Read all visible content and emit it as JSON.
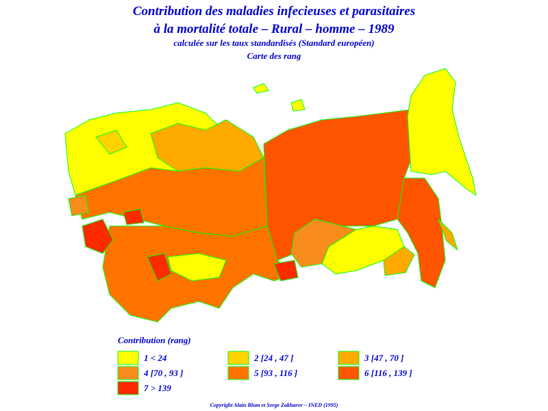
{
  "header": {
    "title_line1": "Contribution des maladies infecieuses et parasitaires",
    "title_line2": "à la mortalité totale – Rural – homme – 1989",
    "subtitle": "calculée sur les taux standardisés (Standard européen)",
    "map_label": "Carte des rang"
  },
  "legend": {
    "title": "Contribution (rang)",
    "items": [
      {
        "label": "1 < 24",
        "color": "#ffff00"
      },
      {
        "label": "2 [24 , 47 ]",
        "color": "#ffd200"
      },
      {
        "label": "3 [47 , 70 ]",
        "color": "#ffaa00"
      },
      {
        "label": "4 [70 , 93 ]",
        "color": "#f88c1c"
      },
      {
        "label": "5 [93 , 116 ]",
        "color": "#ff7400"
      },
      {
        "label": "6 [116 , 139 ]",
        "color": "#ff5500"
      },
      {
        "label": "7 > 139",
        "color": "#ff2a00"
      }
    ]
  },
  "footer": {
    "copyright": "Copyright Alain Blum et Serge Zakharov – INED (1995)"
  }
}
